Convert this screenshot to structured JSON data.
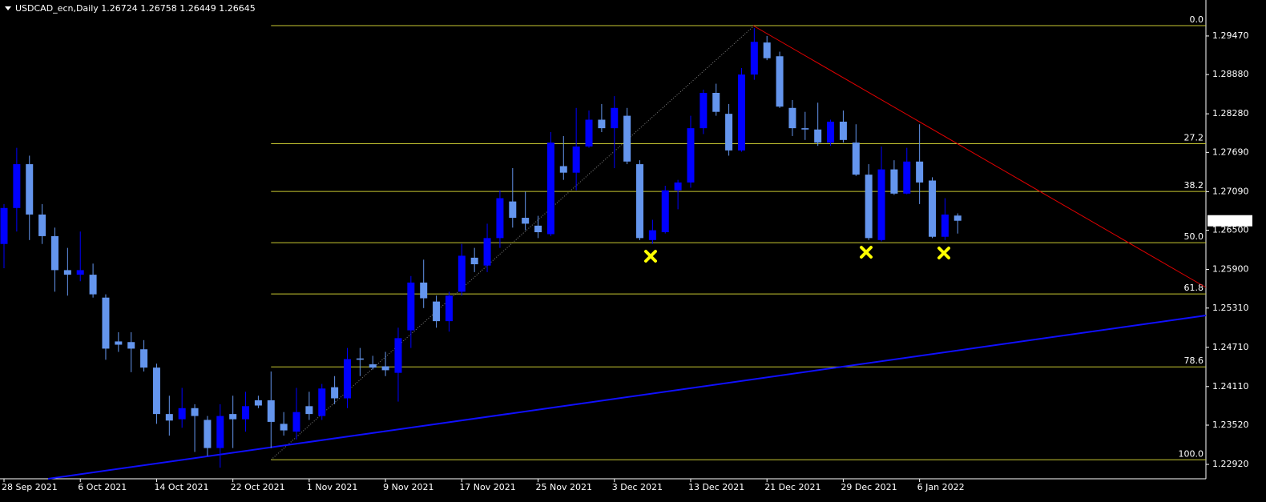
{
  "chart_data": {
    "type": "candlestick",
    "title": "USDCAD_ecn,Daily  1.26724 1.26758 1.26449 1.26645",
    "categories": [
      "28 Sep 2021",
      null,
      null,
      null,
      null,
      null,
      "6 Oct 2021",
      null,
      null,
      null,
      null,
      null,
      "14 Oct 2021",
      null,
      null,
      null,
      null,
      null,
      "22 Oct 2021",
      null,
      null,
      null,
      null,
      null,
      "1 Nov 2021",
      null,
      null,
      null,
      null,
      null,
      "9 Nov 2021",
      null,
      null,
      null,
      null,
      null,
      "17 Nov 2021",
      null,
      null,
      null,
      null,
      null,
      "25 Nov 2021",
      null,
      null,
      null,
      null,
      null,
      "3 Dec 2021",
      null,
      null,
      null,
      null,
      null,
      "13 Dec 2021",
      null,
      null,
      null,
      null,
      null,
      "21 Dec 2021",
      null,
      null,
      null,
      null,
      null,
      "29 Dec 2021",
      null,
      null,
      null,
      null,
      null,
      "6 Jan 2022",
      null,
      null,
      null
    ],
    "open": [
      1.2629,
      1.2684,
      1.2751,
      1.2674,
      1.2641,
      1.2589,
      1.2582,
      1.2582,
      1.2547,
      1.248,
      1.2479,
      1.2468,
      1.244,
      1.2369,
      1.2361,
      1.2378,
      1.236,
      1.2317,
      1.2369,
      1.2361,
      1.239,
      1.239,
      1.2354,
      1.2342,
      1.2381,
      1.2366,
      1.241,
      1.2393,
      1.2454,
      1.2445,
      1.2442,
      1.2432,
      1.2497,
      1.257,
      1.2541,
      1.2511,
      1.2556,
      1.2608,
      1.2596,
      1.2638,
      1.2694,
      1.2669,
      1.2657,
      1.2644,
      1.2748,
      1.2738,
      1.2778,
      1.2819,
      1.2806,
      1.2825,
      1.2751,
      1.2635,
      1.2647,
      1.2711,
      1.2723,
      1.2806,
      1.286,
      1.2828,
      1.2772,
      1.2888,
      1.2937,
      1.2916,
      1.2837,
      1.2806,
      1.2804,
      1.2784,
      1.2816,
      1.2784,
      1.2735,
      1.2635,
      1.2743,
      1.2706,
      1.2755,
      1.2726,
      1.264,
      1.26724
    ],
    "high": [
      1.269,
      1.2776,
      1.2764,
      1.269,
      1.2654,
      1.2623,
      1.2648,
      1.2599,
      1.2552,
      1.2494,
      1.2494,
      1.2482,
      1.2446,
      1.2397,
      1.2409,
      1.2384,
      1.2366,
      1.2384,
      1.2397,
      1.2403,
      1.2397,
      1.2434,
      1.2372,
      1.2409,
      1.2403,
      1.2415,
      1.2427,
      1.247,
      1.247,
      1.2458,
      1.2464,
      1.2501,
      1.258,
      1.2605,
      1.255,
      1.2556,
      1.2629,
      1.2623,
      1.266,
      1.2711,
      1.2745,
      1.2709,
      1.2672,
      1.28,
      1.2794,
      1.2837,
      1.2833,
      1.2843,
      1.2855,
      1.2837,
      1.2757,
      1.2666,
      1.2718,
      1.2727,
      1.2825,
      1.2865,
      1.2874,
      1.2843,
      1.2898,
      1.2959,
      1.2947,
      1.2923,
      1.2849,
      1.2831,
      1.2845,
      1.2819,
      1.2833,
      1.2812,
      1.2751,
      1.2778,
      1.2757,
      1.2776,
      1.2812,
      1.2731,
      1.2699,
      1.26758
    ],
    "low": [
      1.2592,
      1.2648,
      1.2635,
      1.2629,
      1.2556,
      1.255,
      1.2572,
      1.2547,
      1.2452,
      1.2464,
      1.2433,
      1.2434,
      1.2354,
      1.2336,
      1.2348,
      1.2311,
      1.2305,
      1.2287,
      1.2317,
      1.2342,
      1.2378,
      1.2317,
      1.2336,
      1.233,
      1.236,
      1.236,
      1.2384,
      1.2378,
      1.2427,
      1.2437,
      1.2427,
      1.2388,
      1.247,
      1.2531,
      1.2501,
      1.2495,
      1.255,
      1.2586,
      1.2586,
      1.2623,
      1.2654,
      1.265,
      1.2638,
      1.2641,
      1.2727,
      1.2711,
      1.2776,
      1.28,
      1.2745,
      1.2751,
      1.2635,
      1.2629,
      1.2645,
      1.2682,
      1.2715,
      1.2797,
      1.2825,
      1.2764,
      1.277,
      1.288,
      1.291,
      1.2837,
      1.2794,
      1.2788,
      1.2779,
      1.2779,
      1.2784,
      1.2733,
      1.2635,
      1.2633,
      1.2704,
      1.2705,
      1.269,
      1.2638,
      1.2635,
      1.26449
    ],
    "close": [
      1.2684,
      1.2751,
      1.2674,
      1.2641,
      1.2589,
      1.2582,
      1.2589,
      1.2552,
      1.2469,
      1.2475,
      1.2469,
      1.244,
      1.2369,
      1.2359,
      1.2378,
      1.2366,
      1.2317,
      1.2366,
      1.2361,
      1.2381,
      1.2382,
      1.2357,
      1.2344,
      1.2372,
      1.2369,
      1.2408,
      1.2393,
      1.2453,
      1.2452,
      1.244,
      1.2436,
      1.2485,
      1.257,
      1.2546,
      1.2511,
      1.255,
      1.2611,
      1.2598,
      1.2638,
      1.2699,
      1.2669,
      1.266,
      1.2647,
      1.2784,
      1.2738,
      1.2778,
      1.2819,
      1.2806,
      1.2837,
      1.2755,
      1.2638,
      1.265,
      1.2711,
      1.2723,
      1.2806,
      1.286,
      1.2831,
      1.2772,
      1.2888,
      1.2938,
      1.2913,
      1.2839,
      1.2806,
      1.2804,
      1.2784,
      1.2816,
      1.2788,
      1.2735,
      1.2638,
      1.2743,
      1.2706,
      1.2755,
      1.2723,
      1.264,
      1.2674,
      1.26645
    ],
    "up_color": "#0000ff",
    "down_color": "#6495ed",
    "ylim": [
      1.227,
      1.3002
    ],
    "yticks": [
      {
        "value": 1.2947,
        "label": "1.29470"
      },
      {
        "value": 1.2888,
        "label": "1.28880"
      },
      {
        "value": 1.2828,
        "label": "1.28280"
      },
      {
        "value": 1.2769,
        "label": "1.27690"
      },
      {
        "value": 1.2709,
        "label": "1.27090"
      },
      {
        "value": 1.265,
        "label": "1.26500"
      },
      {
        "value": 1.259,
        "label": "1.25900"
      },
      {
        "value": 1.2531,
        "label": "1.25310"
      },
      {
        "value": 1.2471,
        "label": "1.24710"
      },
      {
        "value": 1.2411,
        "label": "1.24110"
      },
      {
        "value": 1.2352,
        "label": "1.23520"
      },
      {
        "value": 1.2292,
        "label": "1.22920"
      }
    ],
    "fib": {
      "high": 1.29629,
      "low": 1.2299,
      "color": "#c8c832",
      "levels": [
        {
          "value": 0,
          "label": "0.0"
        },
        27.2,
        38.2,
        {
          "value": 50,
          "label": "50.0"
        },
        61.8,
        78.6,
        {
          "value": 100,
          "label": "100.0"
        }
      ]
    }
  }
}
